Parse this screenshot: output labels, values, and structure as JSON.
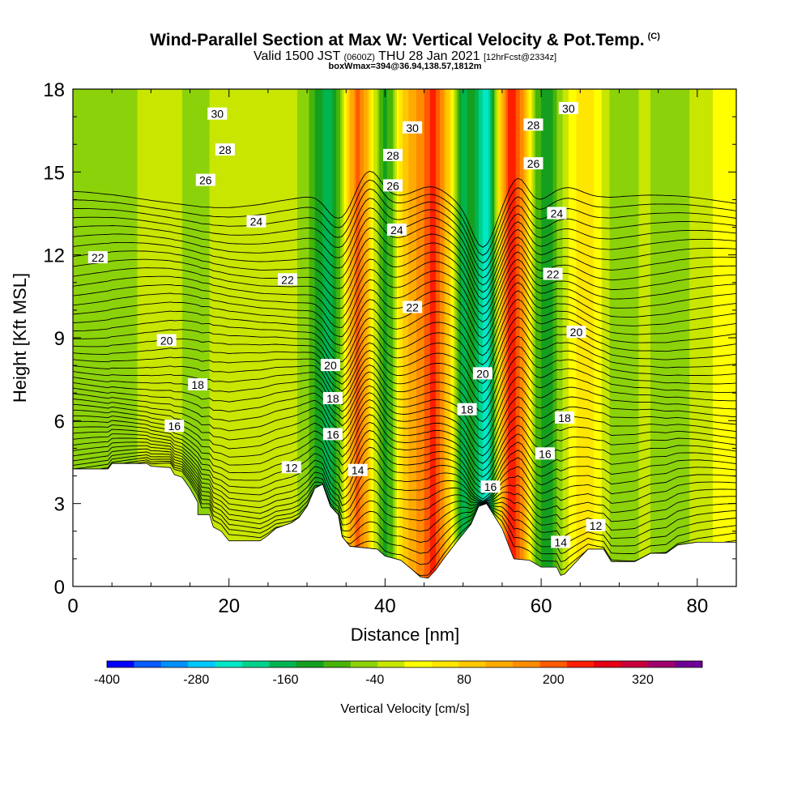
{
  "header": {
    "title": "Wind-Parallel Section at Max W: Vertical Velocity & Pot.Temp.",
    "copyright": "(C)",
    "valid_prefix": "Valid 1500 JST",
    "valid_utc": "(0600Z)",
    "valid_date": "THU 28 Jan 2021",
    "forecast": "[12hrFcst@2334z]",
    "box_info": "boxWmax=394@36.94,138.57,1812m"
  },
  "chart_data": {
    "type": "heatmap",
    "title": "Wind-Parallel Section at Max W: Vertical Velocity & Pot.Temp.",
    "xlabel": "Distance [nm]",
    "ylabel": "Height [Kft MSL]",
    "xlim": [
      0,
      85
    ],
    "ylim": [
      0,
      18
    ],
    "x_ticks": [
      0,
      20,
      40,
      60,
      80
    ],
    "y_ticks": [
      0,
      3,
      6,
      9,
      12,
      15,
      18
    ],
    "colorbar": {
      "label": "Vertical Velocity [cm/s]",
      "min": -400,
      "max": 400,
      "step": 40,
      "tick_labels": [
        -400,
        -280,
        -160,
        -40,
        80,
        200,
        320
      ],
      "colors": [
        "#0000ff",
        "#0a5cff",
        "#0090ff",
        "#00c8ff",
        "#00e6c8",
        "#00d28c",
        "#00b450",
        "#14a01e",
        "#46b40a",
        "#8cd20a",
        "#c8e600",
        "#ffff00",
        "#ffe600",
        "#ffc800",
        "#ffaa00",
        "#ff8c00",
        "#ff5a00",
        "#ff1e00",
        "#e60014",
        "#c8003c",
        "#a0006e",
        "#6e0096"
      ]
    },
    "columns": [
      {
        "x": 0,
        "w": -10
      },
      {
        "x": 3,
        "w": -20
      },
      {
        "x": 7,
        "w": -10
      },
      {
        "x": 11,
        "w": 20
      },
      {
        "x": 13,
        "w": 30
      },
      {
        "x": 15,
        "w": -30
      },
      {
        "x": 17,
        "w": -5
      },
      {
        "x": 20,
        "w": 30
      },
      {
        "x": 24,
        "w": 40
      },
      {
        "x": 28,
        "w": 20
      },
      {
        "x": 30,
        "w": -30
      },
      {
        "x": 31.5,
        "w": -100
      },
      {
        "x": 33,
        "w": -150
      },
      {
        "x": 34,
        "w": -60
      },
      {
        "x": 35,
        "w": 90
      },
      {
        "x": 36.5,
        "w": 260
      },
      {
        "x": 37.5,
        "w": 180
      },
      {
        "x": 38.5,
        "w": 40
      },
      {
        "x": 40,
        "w": -100
      },
      {
        "x": 41,
        "w": -40
      },
      {
        "x": 42,
        "w": 100
      },
      {
        "x": 43.5,
        "w": 180
      },
      {
        "x": 45,
        "w": 240
      },
      {
        "x": 46,
        "w": 300
      },
      {
        "x": 47,
        "w": 250
      },
      {
        "x": 48,
        "w": 140
      },
      {
        "x": 49,
        "w": -20
      },
      {
        "x": 50,
        "w": -150
      },
      {
        "x": 51,
        "w": -80
      },
      {
        "x": 52,
        "w": -170
      },
      {
        "x": 53,
        "w": -240
      },
      {
        "x": 54,
        "w": -60
      },
      {
        "x": 55,
        "w": 180
      },
      {
        "x": 56,
        "w": 300
      },
      {
        "x": 57,
        "w": 270
      },
      {
        "x": 58,
        "w": 160
      },
      {
        "x": 59.5,
        "w": -60
      },
      {
        "x": 61,
        "w": -120
      },
      {
        "x": 62,
        "w": -40
      },
      {
        "x": 64,
        "w": 70
      },
      {
        "x": 66,
        "w": 110
      },
      {
        "x": 68,
        "w": 30
      },
      {
        "x": 70,
        "w": -40
      },
      {
        "x": 73,
        "w": 10
      },
      {
        "x": 76,
        "w": -20
      },
      {
        "x": 79,
        "w": 0
      },
      {
        "x": 82,
        "w": 40
      },
      {
        "x": 85,
        "w": 60
      }
    ],
    "terrain": [
      [
        0,
        4.25
      ],
      [
        4.5,
        4.25
      ],
      [
        5,
        4.45
      ],
      [
        9.5,
        4.45
      ],
      [
        10,
        4.35
      ],
      [
        12.5,
        4.3
      ],
      [
        13,
        4.05
      ],
      [
        14,
        3.95
      ],
      [
        15,
        3.55
      ],
      [
        16,
        3.05
      ],
      [
        16,
        2.6
      ],
      [
        17.5,
        2.6
      ],
      [
        18,
        2.15
      ],
      [
        19,
        2.0
      ],
      [
        20,
        1.65
      ],
      [
        24,
        1.65
      ],
      [
        25,
        1.85
      ],
      [
        26,
        2.1
      ],
      [
        28,
        2.3
      ],
      [
        29,
        2.5
      ],
      [
        30,
        2.9
      ],
      [
        31,
        3.55
      ],
      [
        32,
        3.7
      ],
      [
        33,
        2.9
      ],
      [
        34,
        2.6
      ],
      [
        34.5,
        1.8
      ],
      [
        35.5,
        1.45
      ],
      [
        39,
        1.35
      ],
      [
        40,
        1.1
      ],
      [
        42,
        0.95
      ],
      [
        43.5,
        0.6
      ],
      [
        44.5,
        0.35
      ],
      [
        45.5,
        0.3
      ],
      [
        46.5,
        0.6
      ],
      [
        47.5,
        1.0
      ],
      [
        49,
        1.55
      ],
      [
        51,
        2.25
      ],
      [
        52,
        2.9
      ],
      [
        53,
        3.0
      ],
      [
        55,
        2.1
      ],
      [
        56.5,
        1.0
      ],
      [
        58.5,
        0.95
      ],
      [
        60,
        0.7
      ],
      [
        62,
        0.7
      ],
      [
        62.5,
        0.4
      ],
      [
        63,
        0.45
      ],
      [
        65,
        1.05
      ],
      [
        66,
        1.35
      ],
      [
        68,
        1.35
      ],
      [
        69,
        0.9
      ],
      [
        72,
        0.9
      ],
      [
        74,
        1.2
      ],
      [
        76,
        1.2
      ],
      [
        77.5,
        1.5
      ],
      [
        80,
        1.6
      ],
      [
        85,
        1.6
      ]
    ],
    "isentrope_levels": [
      11,
      11.5,
      12,
      12.5,
      13,
      13.5,
      14,
      14.5,
      15,
      15.5,
      16,
      16.5,
      17,
      17.5,
      18,
      18.5,
      19,
      19.5,
      20,
      20.5,
      21,
      21.5,
      22,
      22.5,
      23,
      23.5,
      24,
      24.5,
      25,
      25.5,
      26,
      26.5,
      27,
      27.5,
      28,
      28.5,
      29,
      29.5,
      30,
      30.5,
      31,
      31.5,
      32
    ],
    "isentrope_labels": [
      {
        "text": "30",
        "x": 18.5,
        "y": 17.1
      },
      {
        "text": "28",
        "x": 19.5,
        "y": 15.8
      },
      {
        "text": "26",
        "x": 17,
        "y": 14.7
      },
      {
        "text": "24",
        "x": 23.5,
        "y": 13.2
      },
      {
        "text": "22",
        "x": 3.2,
        "y": 11.9
      },
      {
        "text": "22",
        "x": 27.5,
        "y": 11.1
      },
      {
        "text": "20",
        "x": 12,
        "y": 8.9
      },
      {
        "text": "18",
        "x": 16,
        "y": 7.3
      },
      {
        "text": "16",
        "x": 13,
        "y": 5.8
      },
      {
        "text": "12",
        "x": 28,
        "y": 4.3
      },
      {
        "text": "20",
        "x": 33,
        "y": 8.0
      },
      {
        "text": "18",
        "x": 33.3,
        "y": 6.8
      },
      {
        "text": "16",
        "x": 33.3,
        "y": 5.5
      },
      {
        "text": "14",
        "x": 36.5,
        "y": 4.2
      },
      {
        "text": "30",
        "x": 43.5,
        "y": 16.6
      },
      {
        "text": "28",
        "x": 41,
        "y": 15.6
      },
      {
        "text": "26",
        "x": 41,
        "y": 14.5
      },
      {
        "text": "24",
        "x": 41.5,
        "y": 12.9
      },
      {
        "text": "22",
        "x": 43.5,
        "y": 10.1
      },
      {
        "text": "20",
        "x": 52.5,
        "y": 7.7
      },
      {
        "text": "18",
        "x": 50.5,
        "y": 6.4
      },
      {
        "text": "16",
        "x": 53.5,
        "y": 3.6
      },
      {
        "text": "30",
        "x": 63.5,
        "y": 17.3
      },
      {
        "text": "28",
        "x": 59,
        "y": 16.7
      },
      {
        "text": "26",
        "x": 59,
        "y": 15.3
      },
      {
        "text": "24",
        "x": 62,
        "y": 13.5
      },
      {
        "text": "22",
        "x": 61.5,
        "y": 11.3
      },
      {
        "text": "20",
        "x": 64.5,
        "y": 9.2
      },
      {
        "text": "18",
        "x": 63,
        "y": 6.1
      },
      {
        "text": "16",
        "x": 60.5,
        "y": 4.8
      },
      {
        "text": "14",
        "x": 62.5,
        "y": 1.6
      },
      {
        "text": "12",
        "x": 67,
        "y": 2.2
      }
    ]
  }
}
